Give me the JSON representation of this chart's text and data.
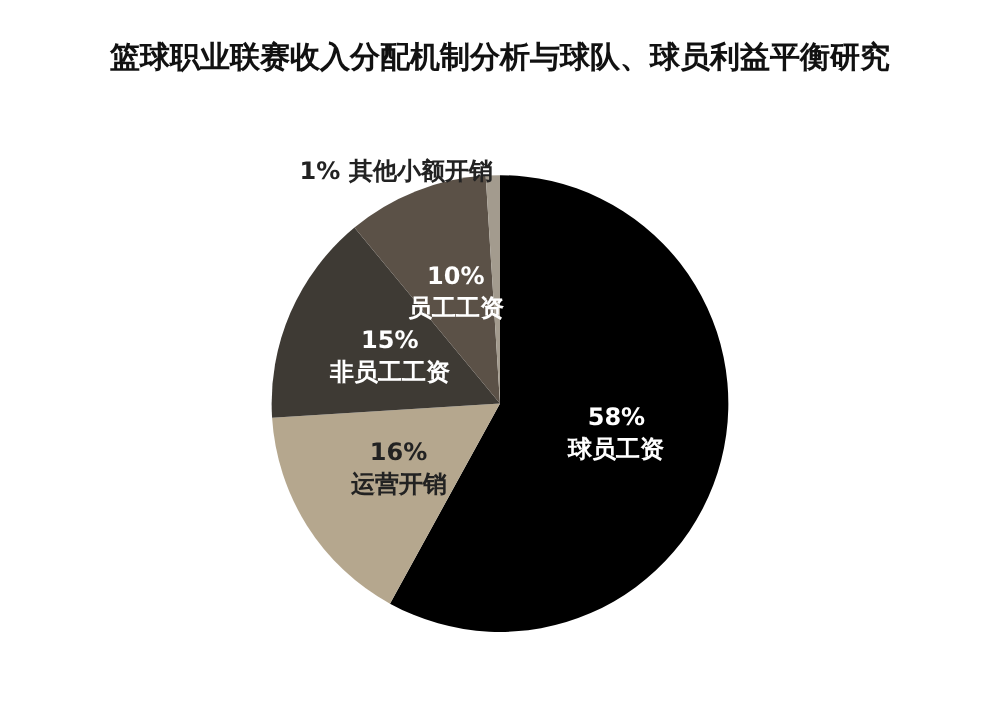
{
  "chart_data": {
    "type": "pie",
    "title": "篮球职业联赛收入分配机制分析与球队、球员利益平衡研究",
    "categories": [
      "球员工资",
      "运营开销",
      "非员工工资",
      "员工工资",
      "其他小额开销"
    ],
    "values": [
      58,
      16,
      15,
      10,
      1
    ],
    "value_labels": [
      "58%",
      "16%",
      "15%",
      "10%",
      "1%"
    ],
    "colors": [
      "#000000",
      "#b5a78e",
      "#3e3a34",
      "#5b5147",
      "#a39b8e"
    ],
    "legend": false
  }
}
